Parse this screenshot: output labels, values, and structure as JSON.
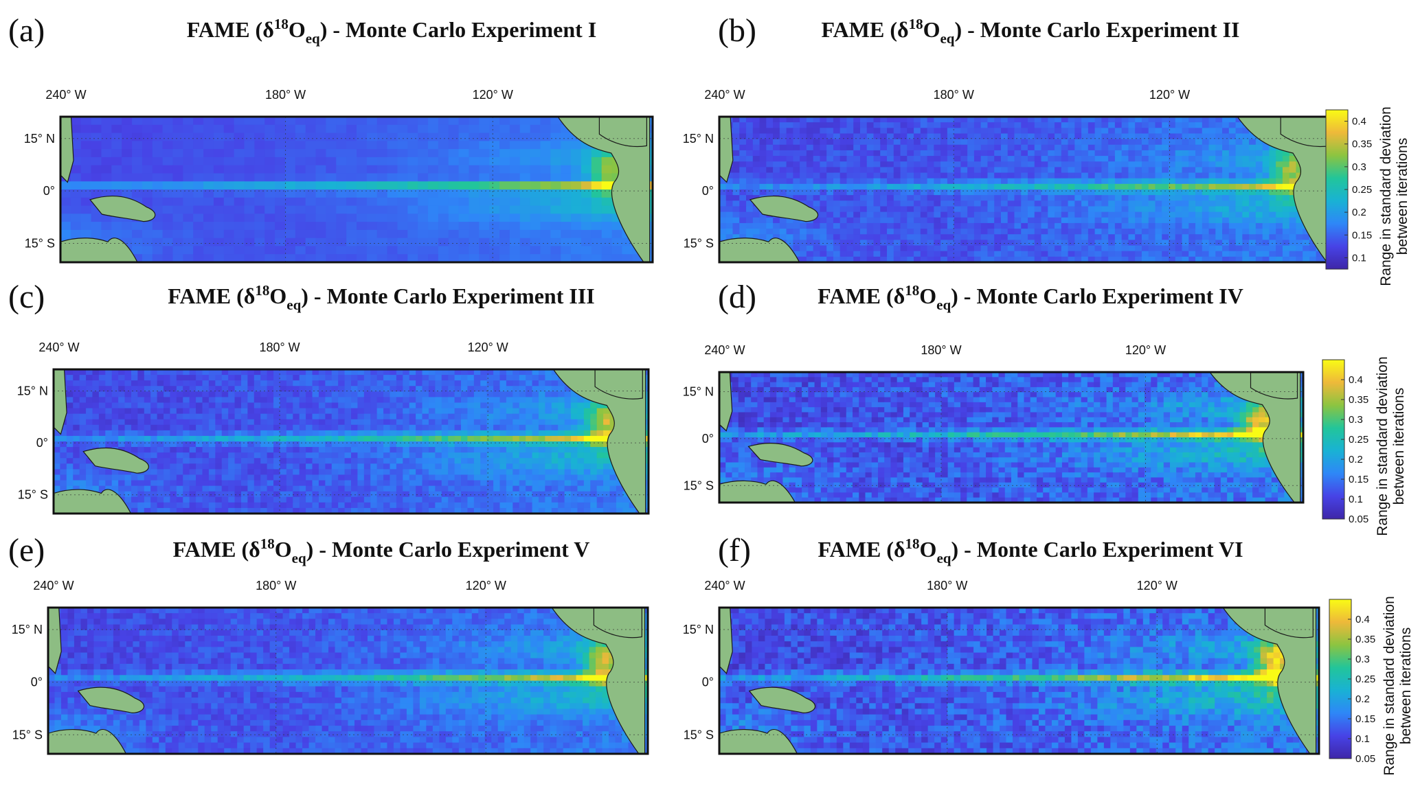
{
  "chart_data": [
    {
      "type": "heatmap",
      "panel": "(a)",
      "title_prefix": "FAME (δ",
      "title_sup": "18",
      "title_mid": "O",
      "title_sub": "eq",
      "title_suffix": ") - Monte Carlo Experiment I",
      "lon_ticks": [
        "240° W",
        "180° W",
        "120° W"
      ],
      "lat_ticks": [
        "15° N",
        "0°",
        "15° S"
      ],
      "colorbar": null,
      "intensity": 0.55,
      "noise": 0.02
    },
    {
      "type": "heatmap",
      "panel": "(b)",
      "title_prefix": "FAME (δ",
      "title_sup": "18",
      "title_mid": "O",
      "title_sub": "eq",
      "title_suffix": ") - Monte Carlo Experiment II",
      "lon_ticks": [
        "240° W",
        "180° W",
        "120° W"
      ],
      "lat_ticks": [
        "15° N",
        "0°",
        "15° S"
      ],
      "colorbar": {
        "label_line1": "Range in standard deviation",
        "label_line2": "between iterations",
        "ticks": [
          "0.1",
          "0.15",
          "0.2",
          "0.25",
          "0.3",
          "0.35",
          "0.4"
        ],
        "range": [
          0.075,
          0.425
        ]
      },
      "intensity": 0.55,
      "noise": 0.05
    },
    {
      "type": "heatmap",
      "panel": "(c)",
      "title_prefix": "FAME (δ",
      "title_sup": "18",
      "title_mid": "O",
      "title_sub": "eq",
      "title_suffix": ") - Monte Carlo Experiment III",
      "lon_ticks": [
        "240° W",
        "180° W",
        "120° W"
      ],
      "lat_ticks": [
        "15° N",
        "0°",
        "15° S"
      ],
      "colorbar": null,
      "intensity": 0.6,
      "noise": 0.05
    },
    {
      "type": "heatmap",
      "panel": "(d)",
      "title_prefix": "FAME (δ",
      "title_sup": "18",
      "title_mid": "O",
      "title_sub": "eq",
      "title_suffix": ") - Monte Carlo Experiment IV",
      "lon_ticks": [
        "240° W",
        "180° W",
        "120° W"
      ],
      "lat_ticks": [
        "15° N",
        "0°",
        "15° S"
      ],
      "colorbar": {
        "label_line1": "Range in standard deviation",
        "label_line2": "between iterations",
        "ticks": [
          "0.05",
          "0.1",
          "0.15",
          "0.2",
          "0.25",
          "0.3",
          "0.35",
          "0.4"
        ],
        "range": [
          0.05,
          0.45
        ]
      },
      "intensity": 0.7,
      "noise": 0.08
    },
    {
      "type": "heatmap",
      "panel": "(e)",
      "title_prefix": "FAME (δ",
      "title_sup": "18",
      "title_mid": "O",
      "title_sub": "eq",
      "title_suffix": ") - Monte Carlo Experiment V",
      "lon_ticks": [
        "240° W",
        "180° W",
        "120° W"
      ],
      "lat_ticks": [
        "15° N",
        "0°",
        "15° S"
      ],
      "colorbar": null,
      "intensity": 0.6,
      "noise": 0.05
    },
    {
      "type": "heatmap",
      "panel": "(f)",
      "title_prefix": "FAME (δ",
      "title_sup": "18",
      "title_mid": "O",
      "title_sub": "eq",
      "title_suffix": ") - Monte Carlo Experiment VI",
      "lon_ticks": [
        "240° W",
        "180° W",
        "120° W"
      ],
      "lat_ticks": [
        "15° N",
        "0°",
        "15° S"
      ],
      "colorbar": {
        "label_line1": "Range in standard deviation",
        "label_line2": "between iterations",
        "ticks": [
          "0.05",
          "0.1",
          "0.15",
          "0.2",
          "0.25",
          "0.3",
          "0.35",
          "0.4"
        ],
        "range": [
          0.05,
          0.45
        ]
      },
      "intensity": 0.75,
      "noise": 0.08
    }
  ],
  "colors": {
    "colormap": [
      "#3e26a8",
      "#4743e6",
      "#2e87f7",
      "#19b2d4",
      "#22c59a",
      "#8cc441",
      "#eeb93a",
      "#f9fb15"
    ],
    "land": "#8dbd83"
  }
}
